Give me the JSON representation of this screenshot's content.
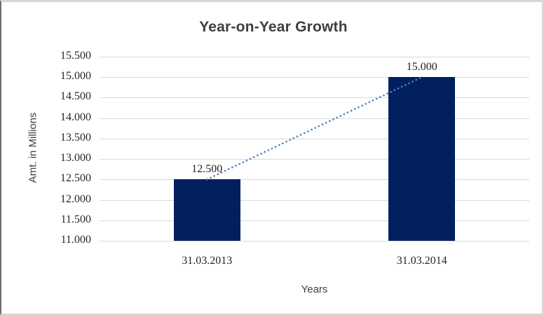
{
  "chart_data": {
    "type": "bar",
    "title": "Year-on-Year Growth",
    "xlabel": "Years",
    "ylabel": "Amt. in Millions",
    "categories": [
      "31.03.2013",
      "31.03.2014"
    ],
    "values": [
      12.5,
      15.0
    ],
    "data_labels": [
      "12.500",
      "15.000"
    ],
    "ylim": [
      11.0,
      15.5
    ],
    "ytick_step": 0.5,
    "ytick_labels": [
      "11.000",
      "11.500",
      "12.000",
      "12.500",
      "13.000",
      "13.500",
      "14.000",
      "14.500",
      "15.000",
      "15.500"
    ],
    "grid": true,
    "legend": "none",
    "bar_color": "#022060",
    "gridline_color": "#d9d9d9",
    "trendline": {
      "style": "dotted",
      "color": "#4e81bd",
      "from_index": 0,
      "to_index": 1
    },
    "title_color": "#3f3f3f",
    "axis_text_color": "#262626"
  }
}
